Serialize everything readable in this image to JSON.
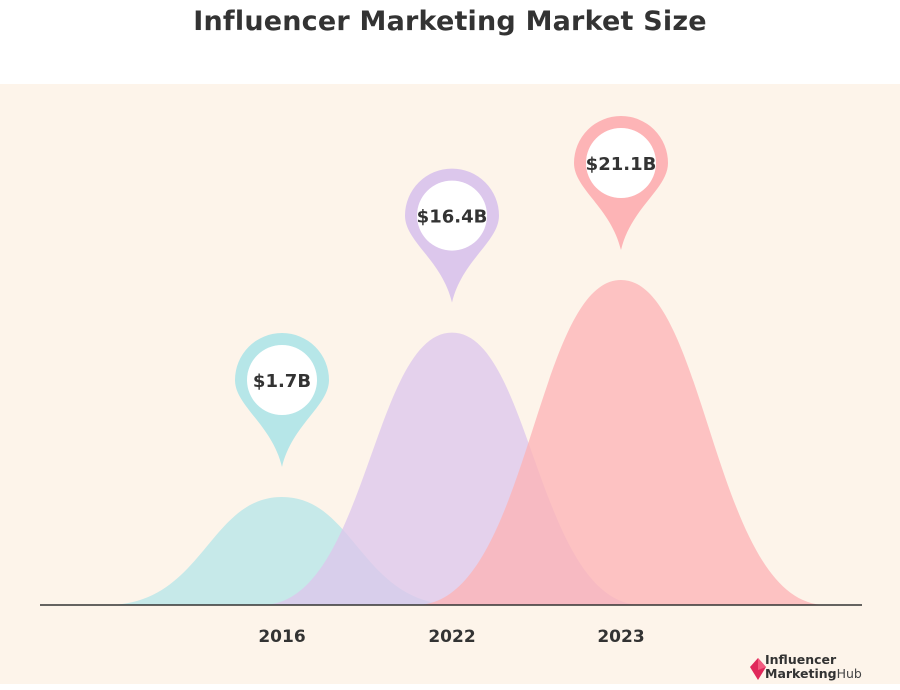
{
  "title": "Influencer Marketing Market Size",
  "logo": {
    "line1": "Influencer",
    "line2a": "Marketing",
    "line2b": "Hub"
  },
  "colors": {
    "background": "#fdf4ea",
    "series": [
      "#b6e6e8",
      "#dcc7ec",
      "#fdb4b6"
    ],
    "text": "#333333",
    "logo_accent": "#e0285a"
  },
  "chart_data": {
    "type": "area",
    "categories": [
      "2016",
      "2022",
      "2023"
    ],
    "values": [
      1.7,
      16.4,
      21.1
    ],
    "value_labels": [
      "$1.7B",
      "$16.4B",
      "$21.1B"
    ],
    "unit": "USD billions",
    "grid": false,
    "legend": "none"
  }
}
